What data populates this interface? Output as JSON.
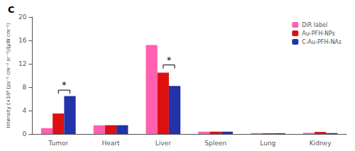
{
  "chart_data": {
    "type": "bar",
    "title": "C",
    "ylabel": "Intensity (×10⁸ (ps⁻¹ cm⁻² sr⁻¹)/(μW cm⁻²)",
    "categories": [
      "Tumor",
      "Heart",
      "Liver",
      "Spleen",
      "Lung",
      "Kidney"
    ],
    "series": [
      {
        "name": "DiR label",
        "color": "#FF60B0",
        "values": [
          1.0,
          1.5,
          15.2,
          0.4,
          0.15,
          0.2
        ]
      },
      {
        "name": "Au-PFH-NPs",
        "color": "#DD1010",
        "values": [
          3.5,
          1.5,
          10.5,
          0.4,
          0.12,
          0.35
        ]
      },
      {
        "name": "C-Au-PFH-NAs",
        "color": "#2233AA",
        "values": [
          6.5,
          1.5,
          8.2,
          0.4,
          0.12,
          0.15
        ]
      }
    ],
    "ylim": [
      0,
      20
    ],
    "yticks": [
      0,
      4,
      8,
      12,
      16,
      20
    ],
    "grid": false,
    "legend": "upper right",
    "annotations": [
      {
        "text": "*",
        "category": "Tumor",
        "series": [
          "Au-PFH-NPs",
          "C-Au-PFH-NAs"
        ],
        "y": 7.5
      },
      {
        "text": "*",
        "category": "Liver",
        "series": [
          "Au-PFH-NPs",
          "C-Au-PFH-NAs"
        ],
        "y": 11.8
      }
    ]
  }
}
